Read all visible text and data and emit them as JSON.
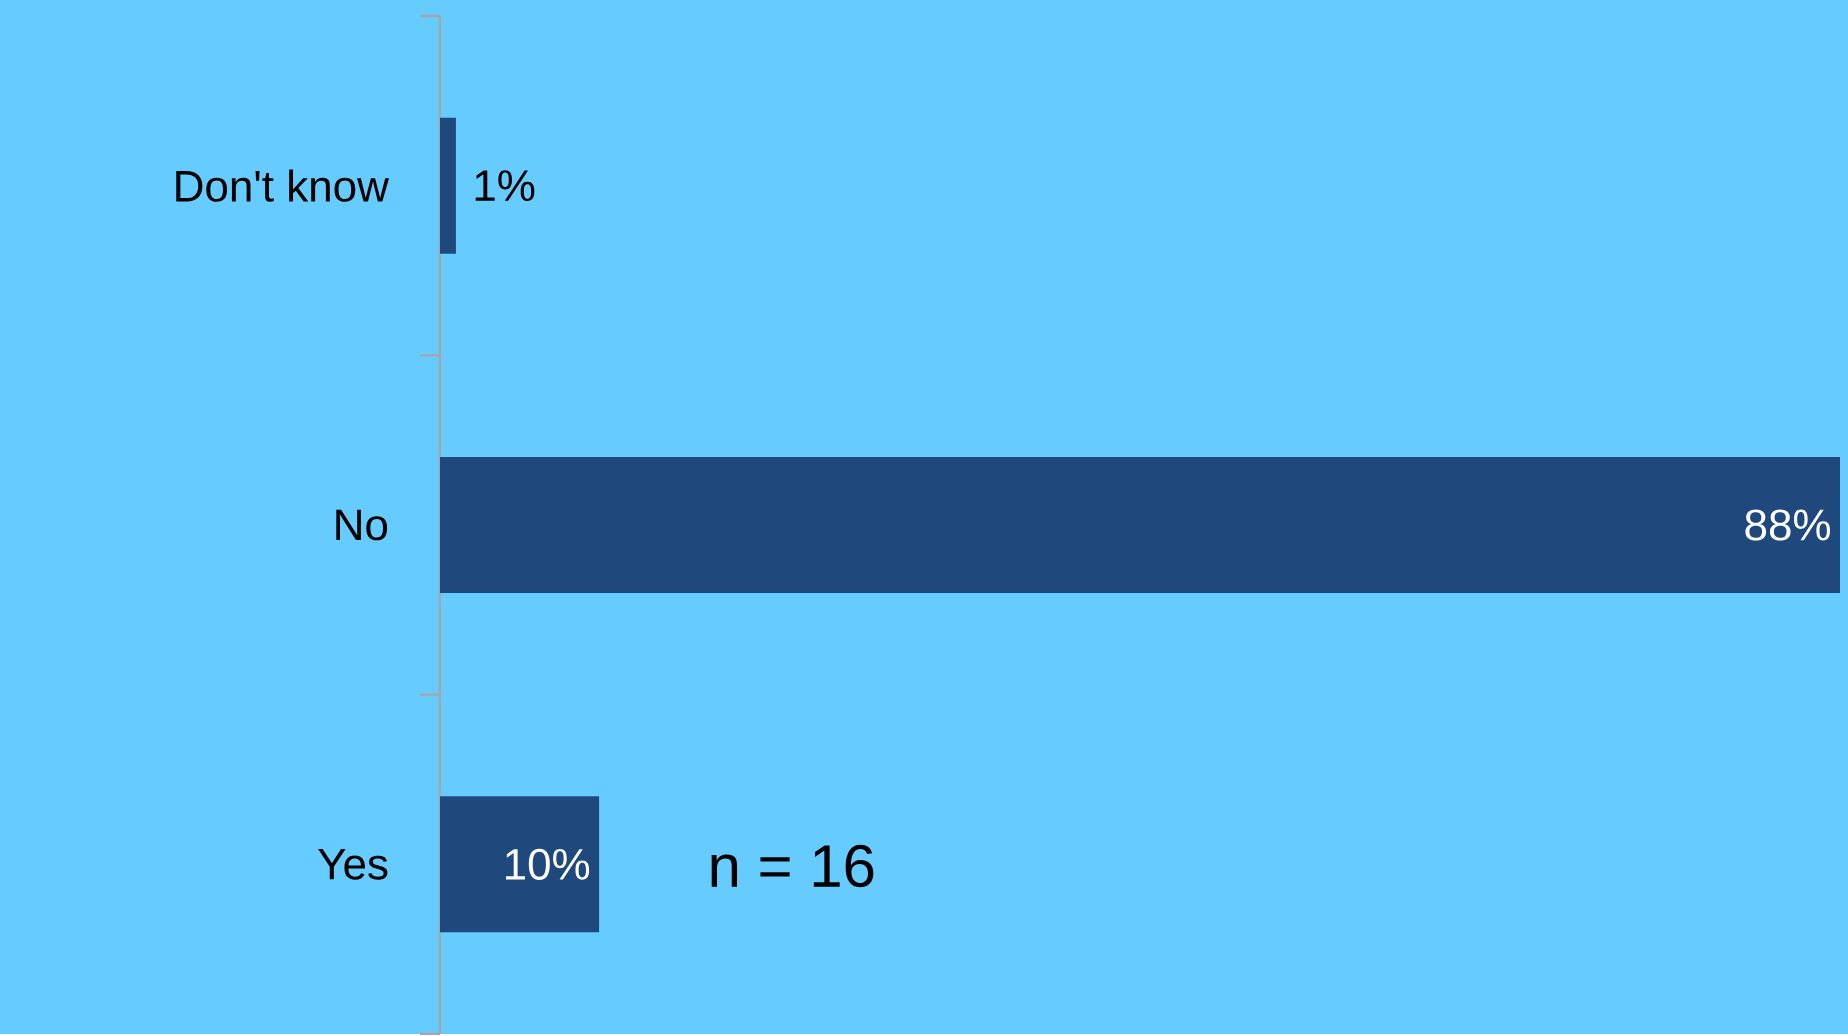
{
  "chart_data": {
    "type": "bar",
    "orientation": "horizontal",
    "categories": [
      "Don't know",
      "No",
      "Yes"
    ],
    "values": [
      1,
      88,
      10
    ],
    "value_labels": [
      "1%",
      "88%",
      "10%"
    ],
    "color": "#1f497d",
    "annotations": [
      "n = 16"
    ]
  }
}
